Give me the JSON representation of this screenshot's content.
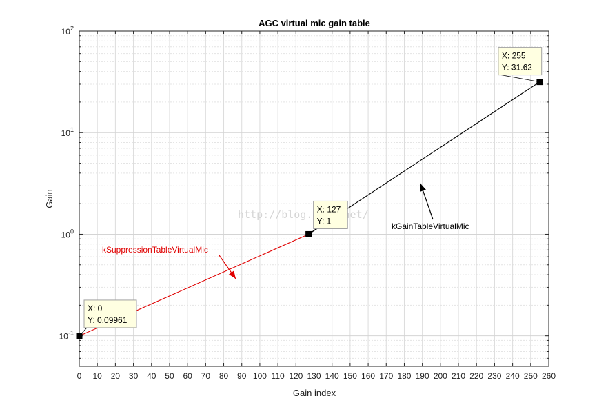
{
  "chart_data": {
    "type": "line",
    "title": "AGC virtual mic gain table",
    "xlabel": "Gain index",
    "ylabel": "Gain",
    "xlim": [
      0,
      260
    ],
    "ylim": [
      0.05,
      100
    ],
    "yscale": "log",
    "grid": true,
    "minor_grid": true,
    "x_ticks": [
      "0",
      "10",
      "20",
      "30",
      "40",
      "50",
      "60",
      "70",
      "80",
      "90",
      "100",
      "110",
      "120",
      "130",
      "140",
      "150",
      "160",
      "170",
      "180",
      "190",
      "200",
      "210",
      "220",
      "230",
      "240",
      "250",
      "260"
    ],
    "y_ticks": [
      {
        "base": "10",
        "exp": "-1",
        "value": 0.1
      },
      {
        "base": "10",
        "exp": "0",
        "value": 1
      },
      {
        "base": "10",
        "exp": "1",
        "value": 10
      },
      {
        "base": "10",
        "exp": "2",
        "value": 100
      }
    ],
    "series": [
      {
        "name": "kSuppressionTableVirtualMic",
        "color": "#e00000",
        "x": [
          0,
          127
        ],
        "y": [
          0.09961,
          1
        ]
      },
      {
        "name": "kGainTableVirtualMic",
        "color": "#000000",
        "x": [
          127,
          255
        ],
        "y": [
          1,
          31.62
        ]
      }
    ],
    "datatips": [
      {
        "x": 0,
        "y": 0.09961,
        "x_text": "X: 0",
        "y_text": "Y: 0.09961"
      },
      {
        "x": 127,
        "y": 1,
        "x_text": "X: 127",
        "y_text": "Y: 1"
      },
      {
        "x": 255,
        "y": 31.62,
        "x_text": "X: 255",
        "y_text": "Y: 31.62"
      }
    ],
    "annotations": [
      {
        "text": "kSuppressionTableVirtualMic",
        "color": "#e00000"
      },
      {
        "text": "kGainTableVirtualMic",
        "color": "#000000"
      }
    ],
    "watermark": "http://blog.csdn.net/"
  }
}
